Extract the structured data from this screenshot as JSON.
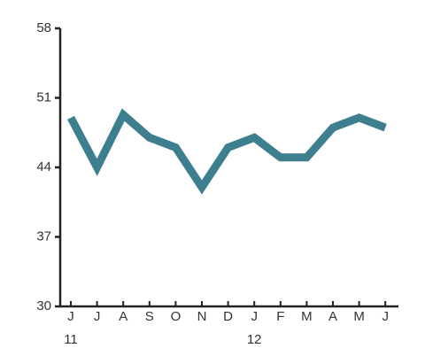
{
  "chart_data": {
    "type": "line",
    "categories": [
      "J",
      "J",
      "A",
      "S",
      "O",
      "N",
      "D",
      "J",
      "F",
      "M",
      "A",
      "M",
      "J"
    ],
    "year_labels": [
      "11",
      null,
      null,
      null,
      null,
      null,
      null,
      "12",
      null,
      null,
      null,
      null,
      null
    ],
    "values": [
      49,
      44,
      49.3,
      47,
      46,
      42,
      46,
      47,
      45,
      45,
      48,
      49,
      48
    ],
    "color": "#3d7f8e",
    "ylim": [
      30,
      58
    ],
    "yticks": [
      30,
      37,
      44,
      51,
      58
    ]
  }
}
